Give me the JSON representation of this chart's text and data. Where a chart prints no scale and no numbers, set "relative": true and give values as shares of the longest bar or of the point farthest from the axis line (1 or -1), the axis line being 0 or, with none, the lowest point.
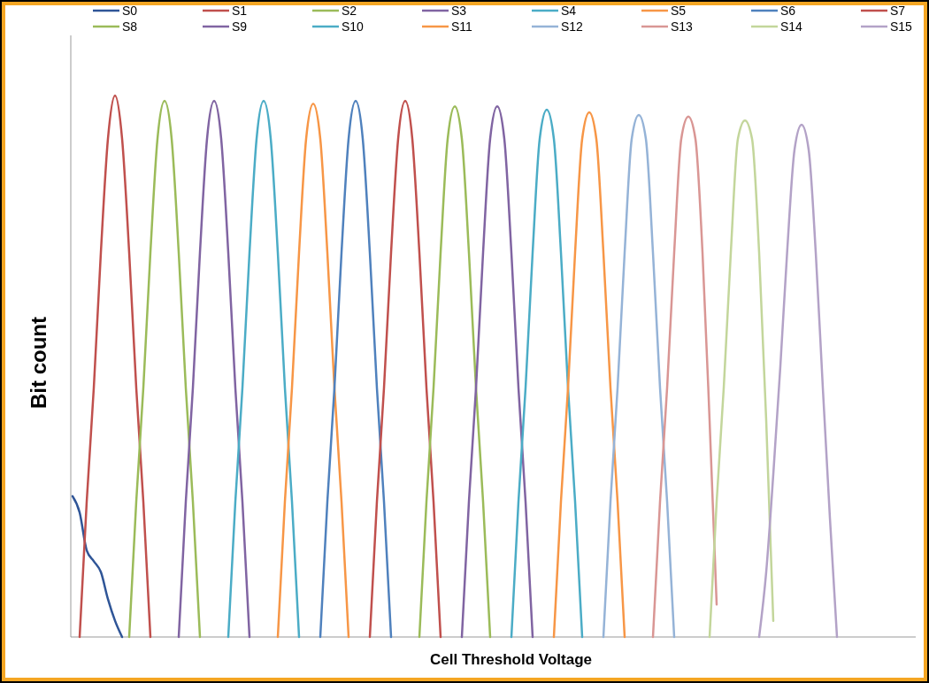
{
  "chart_data": {
    "type": "line",
    "relative": true,
    "xlabel": "Cell Threshold Voltage",
    "ylabel": "Bit count",
    "legend": "top",
    "categories": [
      null,
      null,
      null,
      null,
      null,
      null,
      null,
      null,
      null,
      null,
      null,
      null,
      null,
      null,
      null,
      null,
      null,
      null,
      null,
      null,
      null,
      null,
      null,
      null,
      null,
      null,
      null,
      null,
      null,
      null,
      null,
      null,
      null,
      null,
      null,
      null,
      null,
      null,
      null,
      null,
      null,
      null,
      null,
      null,
      null,
      null,
      null,
      null,
      null,
      null,
      null,
      null,
      null,
      null,
      null,
      null,
      null,
      null,
      null,
      null,
      null,
      null,
      null,
      null,
      null,
      null,
      null,
      null,
      null,
      null,
      null,
      null,
      null,
      null,
      null,
      null,
      null,
      null,
      null,
      null,
      null,
      null,
      null,
      null,
      null,
      null,
      null,
      null,
      null,
      null,
      null,
      null,
      null,
      null,
      null,
      null,
      null,
      null,
      null,
      null,
      null,
      null,
      null,
      null,
      null,
      null,
      null,
      null,
      null,
      null,
      null,
      null,
      null,
      null,
      null,
      null,
      null,
      null,
      null,
      null
    ],
    "series": [
      {
        "name": "S0",
        "color": "#2f5597",
        "values": [
          0.26,
          0.23,
          0.16,
          0.14,
          0.12,
          0.07,
          0.03,
          0,
          null,
          null,
          null,
          null,
          null,
          null,
          null,
          null,
          null,
          null,
          null,
          null,
          null,
          null,
          null,
          null,
          null,
          null,
          null,
          null,
          null,
          null,
          null,
          null,
          null,
          null,
          null,
          null,
          null,
          null,
          null,
          null,
          null,
          null,
          null,
          null,
          null,
          null,
          null,
          null,
          null,
          null,
          null,
          null,
          null,
          null,
          null,
          null,
          null,
          null,
          null,
          null,
          null,
          null,
          null,
          null,
          null,
          null,
          null,
          null,
          null,
          null,
          null,
          null,
          null,
          null,
          null,
          null,
          null,
          null,
          null,
          null,
          null,
          null,
          null,
          null,
          null,
          null,
          null,
          null,
          null,
          null,
          null,
          null,
          null,
          null,
          null,
          null,
          null,
          null,
          null,
          null,
          null,
          null,
          null,
          null,
          null,
          null,
          null,
          null,
          null,
          null,
          null,
          null,
          null,
          null,
          null,
          null,
          null,
          null,
          null,
          null
        ]
      },
      {
        "name": "S1",
        "color": "#c0504d",
        "values": [
          null,
          0,
          0.25,
          0.46,
          0.71,
          0.92,
          1,
          0.92,
          0.71,
          0.46,
          0.25,
          0,
          null,
          null,
          null,
          null,
          null,
          null,
          null,
          null,
          null,
          null,
          null,
          null,
          null,
          null,
          null,
          null,
          null,
          null,
          null,
          null,
          null,
          null,
          null,
          null,
          null,
          null,
          null,
          null,
          null,
          null,
          null,
          null,
          null,
          null,
          null,
          null,
          null,
          null,
          null,
          null,
          null,
          null,
          null,
          null,
          null,
          null,
          null,
          null,
          null,
          null,
          null,
          null,
          null,
          null,
          null,
          null,
          null,
          null,
          null,
          null,
          null,
          null,
          null,
          null,
          null,
          null,
          null,
          null,
          null,
          null,
          null,
          null,
          null,
          null,
          null,
          null,
          null,
          null,
          null,
          null,
          null,
          null,
          null,
          null,
          null,
          null,
          null,
          null,
          null,
          null,
          null,
          null,
          null,
          null,
          null,
          null,
          null,
          null,
          null,
          null,
          null,
          null,
          null,
          null,
          null,
          null,
          null,
          null
        ]
      },
      {
        "name": "S2",
        "color": "#9bbb59",
        "values": [
          null,
          null,
          null,
          null,
          null,
          null,
          null,
          null,
          0,
          0.25,
          0.46,
          0.71,
          0.92,
          0.99,
          0.92,
          0.71,
          0.46,
          0.25,
          0,
          null,
          null,
          null,
          null,
          null,
          null,
          null,
          null,
          null,
          null,
          null,
          null,
          null,
          null,
          null,
          null,
          null,
          null,
          null,
          null,
          null,
          null,
          null,
          null,
          null,
          null,
          null,
          null,
          null,
          null,
          null,
          null,
          null,
          null,
          null,
          null,
          null,
          null,
          null,
          null,
          null,
          null,
          null,
          null,
          null,
          null,
          null,
          null,
          null,
          null,
          null,
          null,
          null,
          null,
          null,
          null,
          null,
          null,
          null,
          null,
          null,
          null,
          null,
          null,
          null,
          null,
          null,
          null,
          null,
          null,
          null,
          null,
          null,
          null,
          null,
          null,
          null,
          null,
          null,
          null,
          null,
          null,
          null,
          null,
          null,
          null,
          null,
          null,
          null,
          null,
          null,
          null,
          null,
          null,
          null,
          null,
          null,
          null,
          null,
          null,
          null
        ]
      },
      {
        "name": "S3",
        "color": "#8064a2",
        "values": [
          null,
          null,
          null,
          null,
          null,
          null,
          null,
          null,
          null,
          null,
          null,
          null,
          null,
          null,
          null,
          0,
          0.25,
          0.46,
          0.71,
          0.92,
          0.99,
          0.92,
          0.71,
          0.46,
          0.25,
          0,
          null,
          null,
          null,
          null,
          null,
          null,
          null,
          null,
          null,
          null,
          null,
          null,
          null,
          null,
          null,
          null,
          null,
          null,
          null,
          null,
          null,
          null,
          null,
          null,
          null,
          null,
          null,
          null,
          null,
          null,
          null,
          null,
          null,
          null,
          null,
          null,
          null,
          null,
          null,
          null,
          null,
          null,
          null,
          null,
          null,
          null,
          null,
          null,
          null,
          null,
          null,
          null,
          null,
          null,
          null,
          null,
          null,
          null,
          null,
          null,
          null,
          null,
          null,
          null,
          null,
          null,
          null,
          null,
          null,
          null,
          null,
          null,
          null,
          null,
          null,
          null,
          null,
          null,
          null,
          null,
          null,
          null,
          null,
          null,
          null,
          null,
          null,
          null,
          null,
          null,
          null,
          null,
          null,
          null
        ]
      },
      {
        "name": "S4",
        "color": "#4bacc6",
        "values": [
          null,
          null,
          null,
          null,
          null,
          null,
          null,
          null,
          null,
          null,
          null,
          null,
          null,
          null,
          null,
          null,
          null,
          null,
          null,
          null,
          null,
          null,
          0,
          0.25,
          0.46,
          0.71,
          0.92,
          0.99,
          0.92,
          0.71,
          0.46,
          0.25,
          0,
          null,
          null,
          null,
          null,
          null,
          null,
          null,
          null,
          null,
          null,
          null,
          null,
          null,
          null,
          null,
          null,
          null,
          null,
          null,
          null,
          null,
          null,
          null,
          null,
          null,
          null,
          null,
          null,
          null,
          null,
          null,
          null,
          null,
          null,
          null,
          null,
          null,
          null,
          null,
          null,
          null,
          null,
          null,
          null,
          null,
          null,
          null,
          null,
          null,
          null,
          null,
          null,
          null,
          null,
          null,
          null,
          null,
          null,
          null,
          null,
          null,
          null,
          null,
          null,
          null,
          null,
          null,
          null,
          null,
          null,
          null,
          null,
          null,
          null,
          null,
          null,
          null,
          null,
          null,
          null,
          null,
          null,
          null,
          null,
          null,
          null,
          null
        ]
      },
      {
        "name": "S5",
        "color": "#f79646",
        "values": [
          null,
          null,
          null,
          null,
          null,
          null,
          null,
          null,
          null,
          null,
          null,
          null,
          null,
          null,
          null,
          null,
          null,
          null,
          null,
          null,
          null,
          null,
          null,
          null,
          null,
          null,
          null,
          null,
          null,
          0,
          0.25,
          0.46,
          0.71,
          0.92,
          0.985,
          0.92,
          0.71,
          0.46,
          0.25,
          0,
          null,
          null,
          null,
          null,
          null,
          null,
          null,
          null,
          null,
          null,
          null,
          null,
          null,
          null,
          null,
          null,
          null,
          null,
          null,
          null,
          null,
          null,
          null,
          null,
          null,
          null,
          null,
          null,
          null,
          null,
          null,
          null,
          null,
          null,
          null,
          null,
          null,
          null,
          null,
          null,
          null,
          null,
          null,
          null,
          null,
          null,
          null,
          null,
          null,
          null,
          null,
          null,
          null,
          null,
          null,
          null,
          null,
          null,
          null,
          null,
          null,
          null,
          null,
          null,
          null,
          null,
          null,
          null,
          null,
          null,
          null,
          null,
          null,
          null,
          null,
          null,
          null,
          null,
          null,
          null
        ]
      },
      {
        "name": "S6",
        "color": "#4f81bd",
        "values": [
          null,
          null,
          null,
          null,
          null,
          null,
          null,
          null,
          null,
          null,
          null,
          null,
          null,
          null,
          null,
          null,
          null,
          null,
          null,
          null,
          null,
          null,
          null,
          null,
          null,
          null,
          null,
          null,
          null,
          null,
          null,
          null,
          null,
          null,
          null,
          0,
          0.25,
          0.46,
          0.71,
          0.92,
          0.99,
          0.92,
          0.71,
          0.46,
          0.25,
          0,
          null,
          null,
          null,
          null,
          null,
          null,
          null,
          null,
          null,
          null,
          null,
          null,
          null,
          null,
          null,
          null,
          null,
          null,
          null,
          null,
          null,
          null,
          null,
          null,
          null,
          null,
          null,
          null,
          null,
          null,
          null,
          null,
          null,
          null,
          null,
          null,
          null,
          null,
          null,
          null,
          null,
          null,
          null,
          null,
          null,
          null,
          null,
          null,
          null,
          null,
          null,
          null,
          null,
          null,
          null,
          null,
          null,
          null,
          null,
          null,
          null,
          null,
          null,
          null,
          null,
          null,
          null,
          null,
          null,
          null,
          null,
          null,
          null,
          null
        ]
      },
      {
        "name": "S7",
        "color": "#c0504d",
        "values": [
          null,
          null,
          null,
          null,
          null,
          null,
          null,
          null,
          null,
          null,
          null,
          null,
          null,
          null,
          null,
          null,
          null,
          null,
          null,
          null,
          null,
          null,
          null,
          null,
          null,
          null,
          null,
          null,
          null,
          null,
          null,
          null,
          null,
          null,
          null,
          null,
          null,
          null,
          null,
          null,
          null,
          null,
          0,
          0.25,
          0.46,
          0.71,
          0.92,
          0.99,
          0.92,
          0.71,
          0.46,
          0.25,
          0,
          null,
          null,
          null,
          null,
          null,
          null,
          null,
          null,
          null,
          null,
          null,
          null,
          null,
          null,
          null,
          null,
          null,
          null,
          null,
          null,
          null,
          null,
          null,
          null,
          null,
          null,
          null,
          null,
          null,
          null,
          null,
          null,
          null,
          null,
          null,
          null,
          null,
          null,
          null,
          null,
          null,
          null,
          null,
          null,
          null,
          null,
          null,
          null,
          null,
          null,
          null,
          null,
          null,
          null,
          null,
          null,
          null,
          null,
          null,
          null,
          null,
          null,
          null,
          null,
          null,
          null,
          null
        ]
      },
      {
        "name": "S8",
        "color": "#9bbb59",
        "values": [
          null,
          null,
          null,
          null,
          null,
          null,
          null,
          null,
          null,
          null,
          null,
          null,
          null,
          null,
          null,
          null,
          null,
          null,
          null,
          null,
          null,
          null,
          null,
          null,
          null,
          null,
          null,
          null,
          null,
          null,
          null,
          null,
          null,
          null,
          null,
          null,
          null,
          null,
          null,
          null,
          null,
          null,
          null,
          null,
          null,
          null,
          null,
          null,
          null,
          0,
          0.25,
          0.46,
          0.71,
          0.92,
          0.98,
          0.92,
          0.71,
          0.46,
          0.25,
          0,
          null,
          null,
          null,
          null,
          null,
          null,
          null,
          null,
          null,
          null,
          null,
          null,
          null,
          null,
          null,
          null,
          null,
          null,
          null,
          null,
          null,
          null,
          null,
          null,
          null,
          null,
          null,
          null,
          null,
          null,
          null,
          null,
          null,
          null,
          null,
          null,
          null,
          null,
          null,
          null,
          null,
          null,
          null,
          null,
          null,
          null,
          null,
          null,
          null,
          null,
          null,
          null,
          null,
          null,
          null,
          null,
          null,
          null,
          null,
          null
        ]
      },
      {
        "name": "S9",
        "color": "#8064a2",
        "values": [
          null,
          null,
          null,
          null,
          null,
          null,
          null,
          null,
          null,
          null,
          null,
          null,
          null,
          null,
          null,
          null,
          null,
          null,
          null,
          null,
          null,
          null,
          null,
          null,
          null,
          null,
          null,
          null,
          null,
          null,
          null,
          null,
          null,
          null,
          null,
          null,
          null,
          null,
          null,
          null,
          null,
          null,
          null,
          null,
          null,
          null,
          null,
          null,
          null,
          null,
          null,
          null,
          null,
          null,
          null,
          0,
          0.25,
          0.46,
          0.71,
          0.92,
          0.98,
          0.92,
          0.71,
          0.46,
          0.25,
          0,
          null,
          null,
          null,
          null,
          null,
          null,
          null,
          null,
          null,
          null,
          null,
          null,
          null,
          null,
          null,
          null,
          null,
          null,
          null,
          null,
          null,
          null,
          null,
          null,
          null,
          null,
          null,
          null,
          null,
          null,
          null,
          null,
          null,
          null,
          null,
          null,
          null,
          null,
          null,
          null,
          null,
          null,
          null,
          null,
          null,
          null,
          null,
          null,
          null,
          null,
          null,
          null,
          null,
          null
        ]
      },
      {
        "name": "S10",
        "color": "#4bacc6",
        "values": [
          null,
          null,
          null,
          null,
          null,
          null,
          null,
          null,
          null,
          null,
          null,
          null,
          null,
          null,
          null,
          null,
          null,
          null,
          null,
          null,
          null,
          null,
          null,
          null,
          null,
          null,
          null,
          null,
          null,
          null,
          null,
          null,
          null,
          null,
          null,
          null,
          null,
          null,
          null,
          null,
          null,
          null,
          null,
          null,
          null,
          null,
          null,
          null,
          null,
          null,
          null,
          null,
          null,
          null,
          null,
          null,
          null,
          null,
          null,
          null,
          null,
          null,
          0,
          0.25,
          0.46,
          0.71,
          0.92,
          0.974,
          0.92,
          0.71,
          0.46,
          0.25,
          0,
          null,
          null,
          null,
          null,
          null,
          null,
          null,
          null,
          null,
          null,
          null,
          null,
          null,
          null,
          null,
          null,
          null,
          null,
          null,
          null,
          null,
          null,
          null,
          null,
          null,
          null,
          null,
          null,
          null,
          null,
          null,
          null,
          null,
          null,
          null,
          null,
          null,
          null,
          null,
          null,
          null,
          null,
          null,
          null,
          null,
          null,
          null
        ]
      },
      {
        "name": "S11",
        "color": "#f79646",
        "values": [
          null,
          null,
          null,
          null,
          null,
          null,
          null,
          null,
          null,
          null,
          null,
          null,
          null,
          null,
          null,
          null,
          null,
          null,
          null,
          null,
          null,
          null,
          null,
          null,
          null,
          null,
          null,
          null,
          null,
          null,
          null,
          null,
          null,
          null,
          null,
          null,
          null,
          null,
          null,
          null,
          null,
          null,
          null,
          null,
          null,
          null,
          null,
          null,
          null,
          null,
          null,
          null,
          null,
          null,
          null,
          null,
          null,
          null,
          null,
          null,
          null,
          null,
          null,
          null,
          null,
          null,
          null,
          null,
          0,
          0.25,
          0.46,
          0.71,
          0.92,
          0.969,
          0.92,
          0.71,
          0.46,
          0.25,
          0,
          null,
          null,
          null,
          null,
          null,
          null,
          null,
          null,
          null,
          null,
          null,
          null,
          null,
          null,
          null,
          null,
          null,
          null,
          null,
          null,
          null,
          null,
          null,
          null,
          null,
          null,
          null,
          null,
          null,
          null,
          null,
          null,
          null,
          null,
          null,
          null,
          null,
          null,
          null,
          null,
          null
        ]
      },
      {
        "name": "S12",
        "color": "#95b3d7",
        "values": [
          null,
          null,
          null,
          null,
          null,
          null,
          null,
          null,
          null,
          null,
          null,
          null,
          null,
          null,
          null,
          null,
          null,
          null,
          null,
          null,
          null,
          null,
          null,
          null,
          null,
          null,
          null,
          null,
          null,
          null,
          null,
          null,
          null,
          null,
          null,
          null,
          null,
          null,
          null,
          null,
          null,
          null,
          null,
          null,
          null,
          null,
          null,
          null,
          null,
          null,
          null,
          null,
          null,
          null,
          null,
          null,
          null,
          null,
          null,
          null,
          null,
          null,
          null,
          null,
          null,
          null,
          null,
          null,
          null,
          null,
          null,
          null,
          null,
          null,
          null,
          0,
          0.25,
          0.46,
          0.71,
          0.92,
          0.964,
          0.92,
          0.71,
          0.46,
          0.25,
          0,
          null,
          null,
          null,
          null,
          null,
          null,
          null,
          null,
          null,
          null,
          null,
          null,
          null,
          null,
          null,
          null,
          null,
          null,
          null,
          null,
          null,
          null,
          null,
          null,
          null,
          null,
          null,
          null,
          null,
          null,
          null,
          null,
          null,
          null
        ]
      },
      {
        "name": "S13",
        "color": "#d99694",
        "values": [
          null,
          null,
          null,
          null,
          null,
          null,
          null,
          null,
          null,
          null,
          null,
          null,
          null,
          null,
          null,
          null,
          null,
          null,
          null,
          null,
          null,
          null,
          null,
          null,
          null,
          null,
          null,
          null,
          null,
          null,
          null,
          null,
          null,
          null,
          null,
          null,
          null,
          null,
          null,
          null,
          null,
          null,
          null,
          null,
          null,
          null,
          null,
          null,
          null,
          null,
          null,
          null,
          null,
          null,
          null,
          null,
          null,
          null,
          null,
          null,
          null,
          null,
          null,
          null,
          null,
          null,
          null,
          null,
          null,
          null,
          null,
          null,
          null,
          null,
          null,
          null,
          null,
          null,
          null,
          null,
          null,
          null,
          0,
          0.25,
          0.46,
          0.71,
          0.92,
          0.961,
          0.92,
          0.71,
          0.4,
          0.06,
          null,
          null,
          null,
          null,
          null,
          null,
          null,
          null,
          null,
          null,
          null,
          null,
          null,
          null,
          null,
          null,
          null,
          null,
          null,
          null,
          null,
          null,
          null,
          null,
          null,
          null,
          null,
          null
        ]
      },
      {
        "name": "S14",
        "color": "#c3d69b",
        "values": [
          null,
          null,
          null,
          null,
          null,
          null,
          null,
          null,
          null,
          null,
          null,
          null,
          null,
          null,
          null,
          null,
          null,
          null,
          null,
          null,
          null,
          null,
          null,
          null,
          null,
          null,
          null,
          null,
          null,
          null,
          null,
          null,
          null,
          null,
          null,
          null,
          null,
          null,
          null,
          null,
          null,
          null,
          null,
          null,
          null,
          null,
          null,
          null,
          null,
          null,
          null,
          null,
          null,
          null,
          null,
          null,
          null,
          null,
          null,
          null,
          null,
          null,
          null,
          null,
          null,
          null,
          null,
          null,
          null,
          null,
          null,
          null,
          null,
          null,
          null,
          null,
          null,
          null,
          null,
          null,
          null,
          null,
          null,
          null,
          null,
          null,
          null,
          null,
          null,
          null,
          0,
          0.25,
          0.46,
          0.71,
          0.92,
          0.954,
          0.92,
          0.71,
          0.4,
          0.03,
          null,
          null,
          null,
          null,
          null,
          null,
          null,
          null,
          null,
          null,
          null,
          null,
          null,
          null,
          null,
          null,
          null,
          null,
          null,
          null
        ]
      },
      {
        "name": "S15",
        "color": "#b3a2c7",
        "values": [
          null,
          null,
          null,
          null,
          null,
          null,
          null,
          null,
          null,
          null,
          null,
          null,
          null,
          null,
          null,
          null,
          null,
          null,
          null,
          null,
          null,
          null,
          null,
          null,
          null,
          null,
          null,
          null,
          null,
          null,
          null,
          null,
          null,
          null,
          null,
          null,
          null,
          null,
          null,
          null,
          null,
          null,
          null,
          null,
          null,
          null,
          null,
          null,
          null,
          null,
          null,
          null,
          null,
          null,
          null,
          null,
          null,
          null,
          null,
          null,
          null,
          null,
          null,
          null,
          null,
          null,
          null,
          null,
          null,
          null,
          null,
          null,
          null,
          null,
          null,
          null,
          null,
          null,
          null,
          null,
          null,
          null,
          null,
          null,
          null,
          null,
          null,
          null,
          null,
          null,
          null,
          null,
          null,
          null,
          null,
          null,
          null,
          0,
          0.12,
          0.3,
          0.5,
          0.72,
          0.9,
          0.946,
          0.9,
          0.71,
          0.46,
          0.22,
          0,
          null,
          null,
          null,
          null,
          null,
          null,
          null,
          null,
          null,
          null,
          null
        ]
      }
    ]
  }
}
